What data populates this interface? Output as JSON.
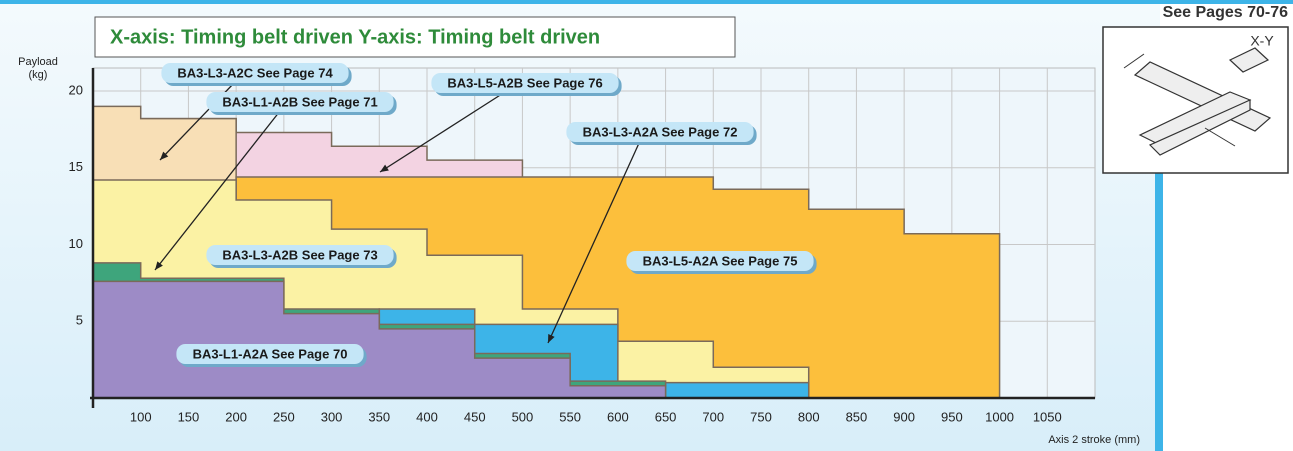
{
  "chart_data": {
    "type": "step-area",
    "title": "X-axis: Timing belt driven Y-axis: Timing belt driven",
    "note": "See Pages 70-76",
    "inset_label": "X-Y",
    "ylabel": [
      "Payload",
      "(kg)"
    ],
    "xlabel": "Axis 2 stroke (mm)",
    "xlim": [
      50,
      1100
    ],
    "ylim": [
      0,
      21.5
    ],
    "xticks": [
      100,
      150,
      200,
      250,
      300,
      350,
      400,
      450,
      500,
      550,
      600,
      650,
      700,
      750,
      800,
      850,
      900,
      950,
      1000,
      1050
    ],
    "yticks": [
      5,
      10,
      15,
      20
    ],
    "grid": true,
    "series": [
      {
        "name": "BA3-L5-A2B See Page 76",
        "color": "#f3d3e2",
        "x": [
          100,
          200,
          300,
          400,
          500
        ],
        "values": [
          18.2,
          17.3,
          16.4,
          15.5,
          15.5
        ]
      },
      {
        "name": "BA3-L3-A2C See Page 74",
        "color": "#f8dfb6",
        "x": [
          50,
          100,
          200
        ],
        "values": [
          19,
          18.2,
          18.2
        ]
      },
      {
        "name": "BA3-L5-A2A See Page 75",
        "color": "#fcbf3c",
        "x": [
          200,
          700,
          800,
          900,
          1000
        ],
        "values": [
          14.4,
          13.6,
          12.3,
          10.7,
          10.7
        ]
      },
      {
        "name": "BA3-L3-A2B See Page 73",
        "color": "#fbf2a4",
        "x": [
          50,
          200,
          300,
          400,
          500,
          600,
          700,
          800
        ],
        "values": [
          14.2,
          12.9,
          11,
          9.3,
          5.8,
          3.7,
          2,
          2
        ]
      },
      {
        "name": "BA3-L3-A2A See Page 72",
        "color": "#3db4e8",
        "x": [
          350,
          450,
          600,
          650,
          800
        ],
        "values": [
          5.8,
          4.8,
          0.8,
          1,
          1
        ]
      },
      {
        "name": "BA3-L1-A2B See Page 71",
        "color": "#3ea57c",
        "x": [
          50,
          100,
          250,
          350,
          450,
          550,
          650
        ],
        "values": [
          8.8,
          7.8,
          5.8,
          4.8,
          2.9,
          1.1,
          1.1
        ]
      },
      {
        "name": "BA3-L1-A2A See Page 70",
        "color": "#9d8bc6",
        "x": [
          50,
          250,
          350,
          450,
          550,
          650
        ],
        "values": [
          7.6,
          5.5,
          4.5,
          2.6,
          0.8,
          0.8
        ]
      }
    ]
  }
}
